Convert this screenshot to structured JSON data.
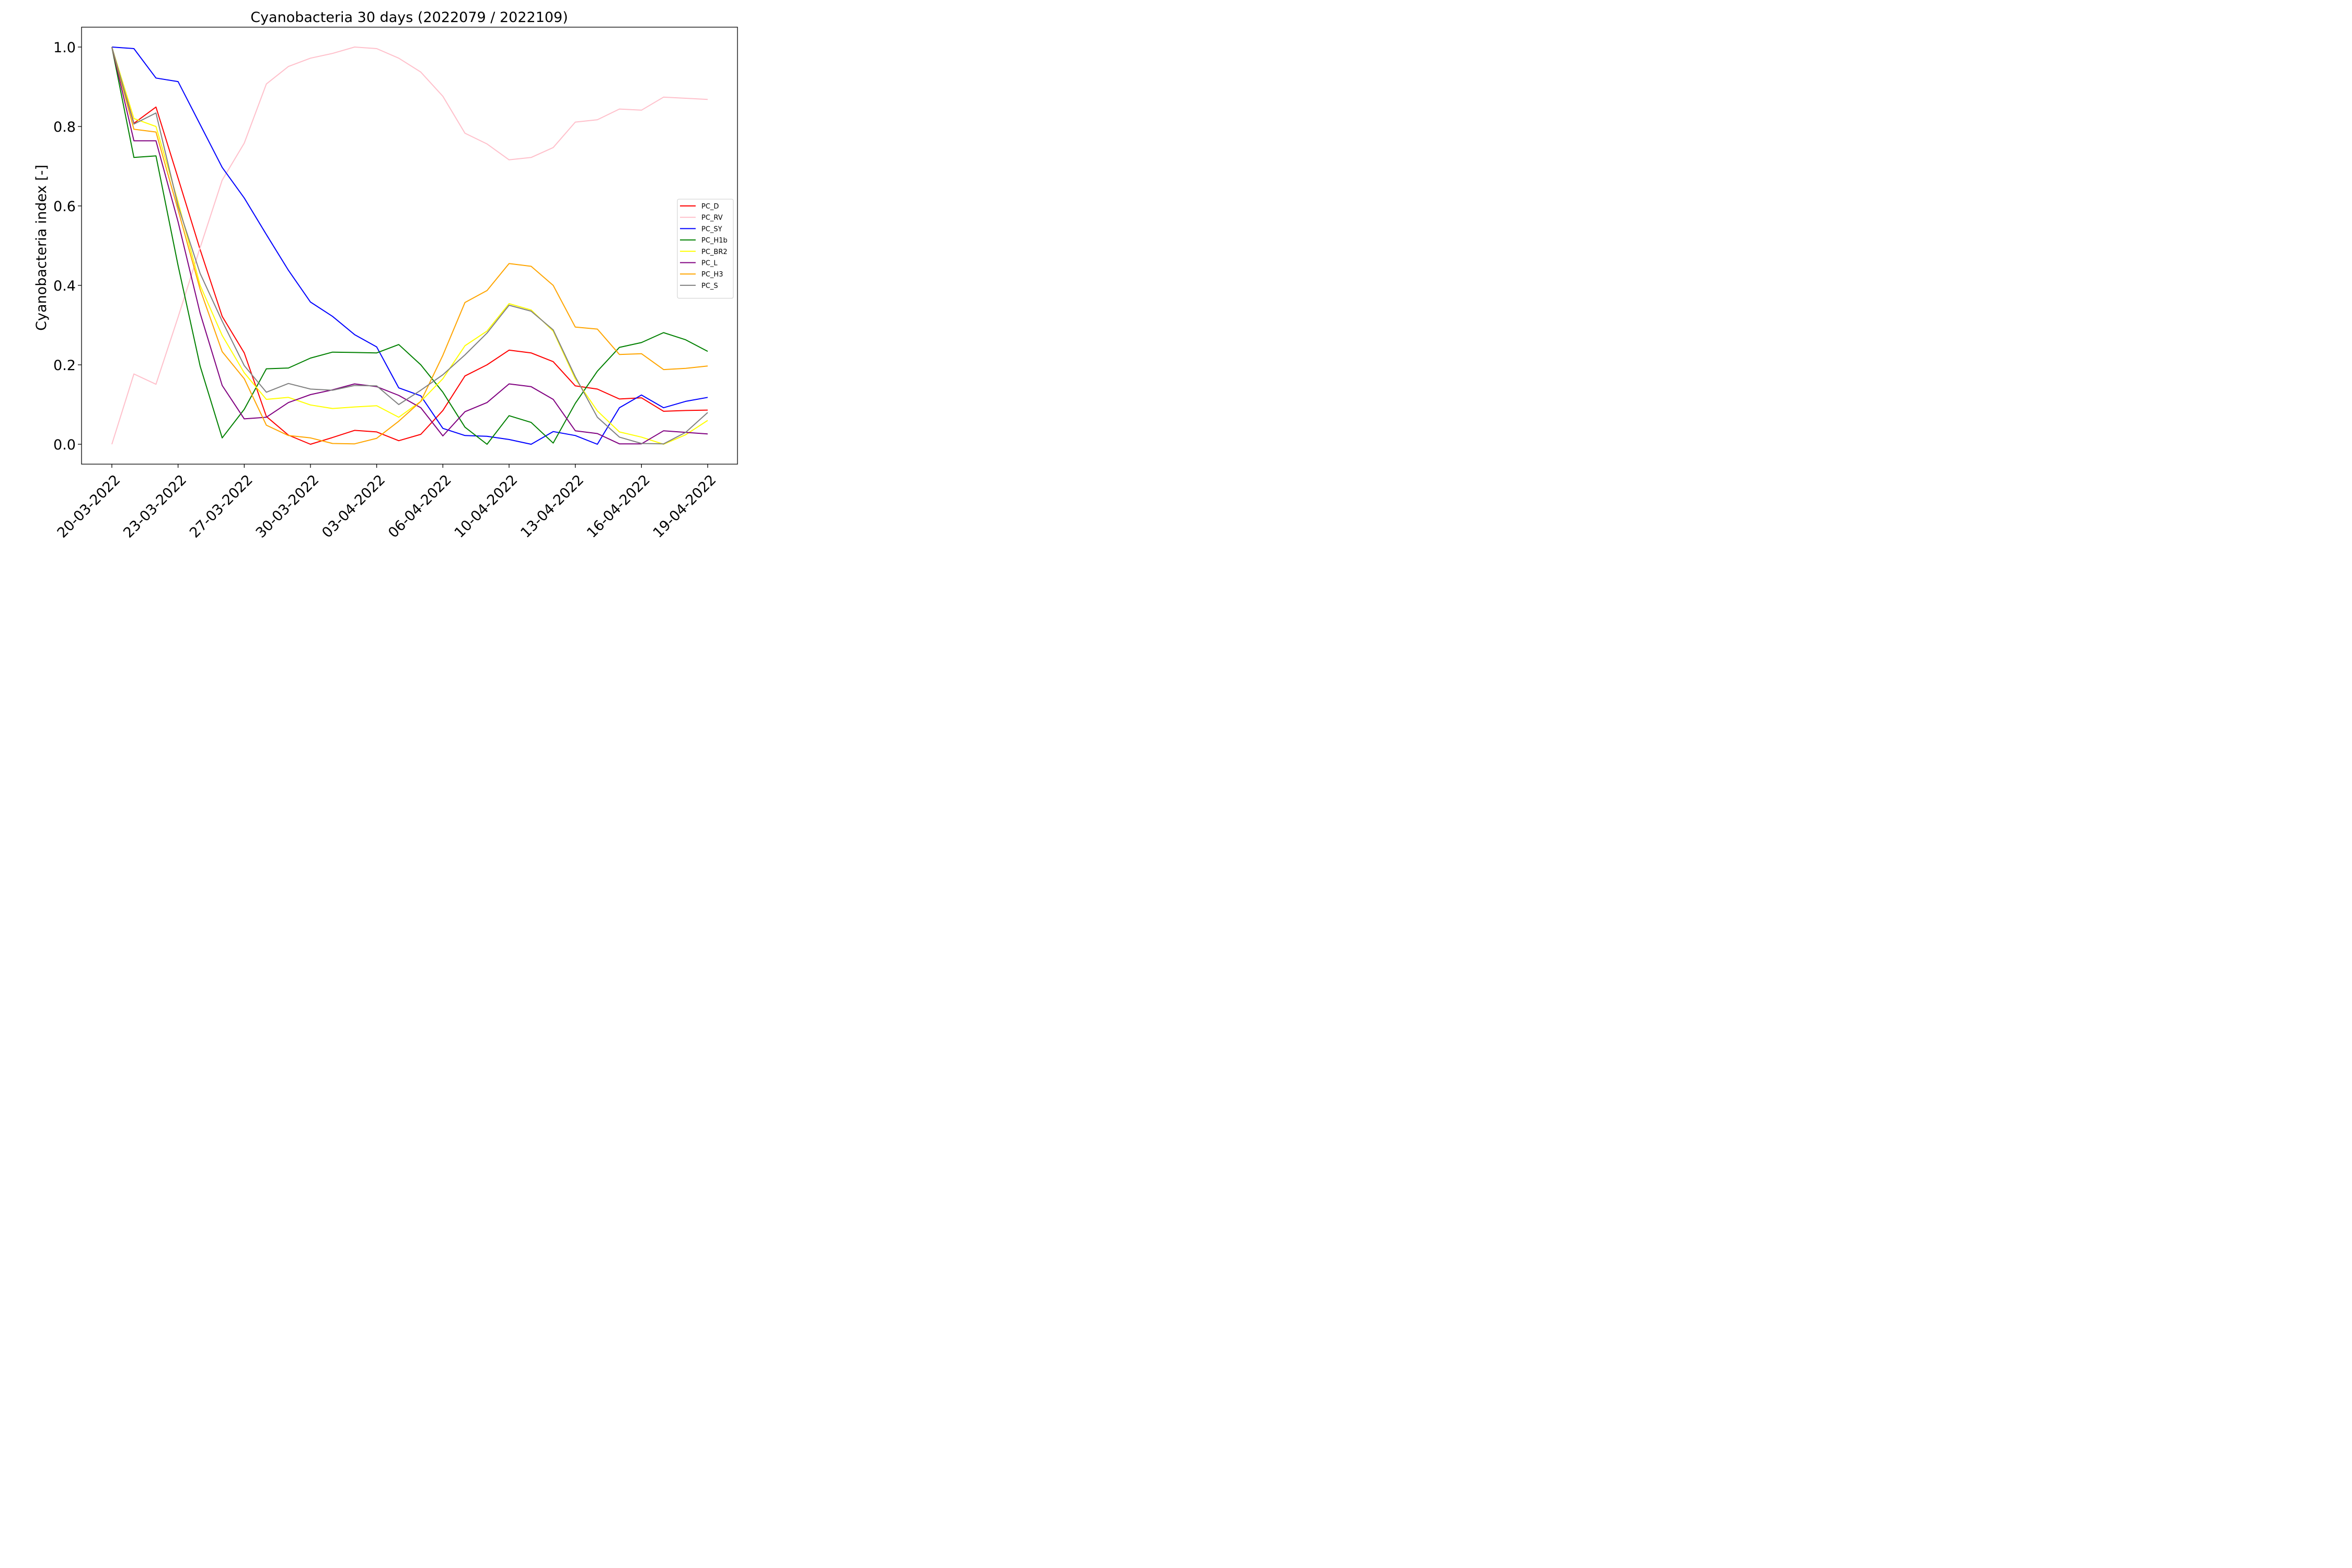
{
  "chart_data": {
    "type": "line",
    "title": "Cyanobacteria 30 days (2022079 / 2022109)",
    "xlabel": "",
    "ylabel": "Cyanobacteria index [-]",
    "ylim": [
      0.0,
      1.0
    ],
    "yticks": [
      "0.0",
      "0.2",
      "0.4",
      "0.6",
      "0.8",
      "1.0"
    ],
    "x_tick_labels": [
      "20-03-2022",
      "23-03-2022",
      "27-03-2022",
      "30-03-2022",
      "03-04-2022",
      "06-04-2022",
      "10-04-2022",
      "13-04-2022",
      "16-04-2022",
      "19-04-2022"
    ],
    "x_tick_positions": [
      0,
      3,
      6,
      9,
      12,
      15,
      18,
      21,
      24,
      27
    ],
    "x_count": 28,
    "grid": false,
    "legend_placement": "right",
    "series": [
      {
        "name": "PC_D",
        "color": "#ff0000",
        "values": [
          1.0,
          0.808,
          0.849,
          0.67,
          0.49,
          0.322,
          0.23,
          0.07,
          0.023,
          0.0,
          0.017,
          0.035,
          0.031,
          0.009,
          0.025,
          0.085,
          0.172,
          0.2,
          0.237,
          0.23,
          0.208,
          0.147,
          0.139,
          0.114,
          0.117,
          0.083,
          0.085,
          0.086
        ]
      },
      {
        "name": "PC_RV",
        "color": "#ffc0cb",
        "values": [
          0.0,
          0.177,
          0.151,
          0.32,
          0.495,
          0.665,
          0.758,
          0.907,
          0.951,
          0.972,
          0.984,
          1.0,
          0.996,
          0.972,
          0.937,
          0.876,
          0.783,
          0.756,
          0.716,
          0.722,
          0.747,
          0.811,
          0.817,
          0.844,
          0.841,
          0.874,
          0.871,
          0.868
        ]
      },
      {
        "name": "PC_SY",
        "color": "#0000ff",
        "values": [
          1.0,
          0.996,
          0.922,
          0.913,
          0.805,
          0.697,
          0.62,
          0.528,
          0.438,
          0.358,
          0.322,
          0.276,
          0.245,
          0.142,
          0.122,
          0.04,
          0.022,
          0.02,
          0.012,
          0.0,
          0.032,
          0.022,
          0.0,
          0.092,
          0.124,
          0.092,
          0.108,
          0.118
        ]
      },
      {
        "name": "PC_H1b",
        "color": "#008000",
        "values": [
          1.0,
          0.722,
          0.726,
          0.45,
          0.197,
          0.016,
          0.088,
          0.19,
          0.192,
          0.217,
          0.232,
          0.231,
          0.23,
          0.251,
          0.2,
          0.131,
          0.043,
          0.0,
          0.072,
          0.055,
          0.003,
          0.103,
          0.184,
          0.244,
          0.256,
          0.281,
          0.263,
          0.234
        ]
      },
      {
        "name": "PC_BR2",
        "color": "#ffff00",
        "values": [
          1.0,
          0.82,
          0.8,
          0.61,
          0.4,
          0.274,
          0.18,
          0.113,
          0.118,
          0.099,
          0.09,
          0.094,
          0.097,
          0.068,
          0.108,
          0.165,
          0.248,
          0.285,
          0.354,
          0.338,
          0.285,
          0.165,
          0.084,
          0.031,
          0.018,
          0.0,
          0.024,
          0.06
        ]
      },
      {
        "name": "PC_L",
        "color": "#800080",
        "values": [
          1.0,
          0.764,
          0.764,
          0.56,
          0.33,
          0.148,
          0.064,
          0.068,
          0.105,
          0.125,
          0.137,
          0.152,
          0.145,
          0.123,
          0.092,
          0.021,
          0.082,
          0.105,
          0.152,
          0.145,
          0.113,
          0.034,
          0.027,
          0.001,
          0.001,
          0.034,
          0.03,
          0.026
        ]
      },
      {
        "name": "PC_H3",
        "color": "#ffa500",
        "values": [
          1.0,
          0.793,
          0.786,
          0.59,
          0.39,
          0.233,
          0.165,
          0.048,
          0.022,
          0.016,
          0.002,
          0.001,
          0.015,
          0.058,
          0.108,
          0.224,
          0.357,
          0.387,
          0.455,
          0.448,
          0.4,
          0.295,
          0.29,
          0.226,
          0.228,
          0.188,
          0.191,
          0.197
        ]
      },
      {
        "name": "PC_S",
        "color": "#808080",
        "values": [
          1.0,
          0.806,
          0.834,
          0.6,
          0.43,
          0.31,
          0.198,
          0.131,
          0.153,
          0.139,
          0.136,
          0.148,
          0.147,
          0.1,
          0.136,
          0.175,
          0.225,
          0.28,
          0.35,
          0.335,
          0.288,
          0.17,
          0.068,
          0.018,
          0.002,
          0.001,
          0.03,
          0.08
        ]
      }
    ]
  }
}
